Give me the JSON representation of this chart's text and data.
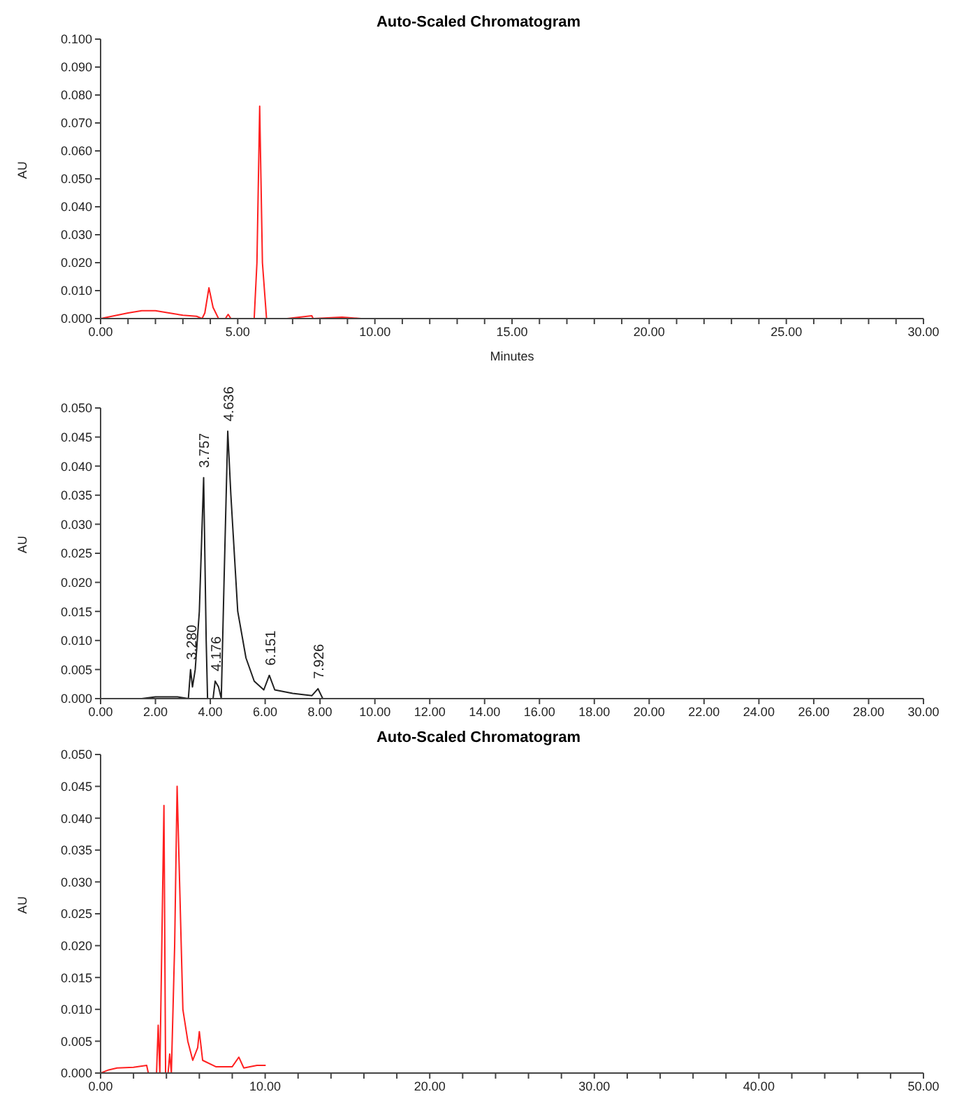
{
  "chart_data": [
    {
      "type": "line",
      "title": "Auto-Scaled Chromatogram",
      "xlabel": "Minutes",
      "ylabel": "AU",
      "marker": "none",
      "xlim": [
        0,
        30
      ],
      "xticks": [
        {
          "value": 0,
          "label": "0.00"
        },
        {
          "value": 1,
          "label": null
        },
        {
          "value": 2,
          "label": null
        },
        {
          "value": 3,
          "label": null
        },
        {
          "value": 4,
          "label": null
        },
        {
          "value": 5,
          "label": "5.00"
        },
        {
          "value": 6,
          "label": null
        },
        {
          "value": 7,
          "label": null
        },
        {
          "value": 8,
          "label": null
        },
        {
          "value": 9,
          "label": null
        },
        {
          "value": 10,
          "label": "10.00"
        },
        {
          "value": 11,
          "label": null
        },
        {
          "value": 12,
          "label": null
        },
        {
          "value": 13,
          "label": null
        },
        {
          "value": 14,
          "label": null
        },
        {
          "value": 15,
          "label": "15.00"
        },
        {
          "value": 16,
          "label": null
        },
        {
          "value": 17,
          "label": null
        },
        {
          "value": 18,
          "label": null
        },
        {
          "value": 19,
          "label": null
        },
        {
          "value": 20,
          "label": "20.00"
        },
        {
          "value": 21,
          "label": null
        },
        {
          "value": 22,
          "label": null
        },
        {
          "value": 23,
          "label": null
        },
        {
          "value": 24,
          "label": null
        },
        {
          "value": 25,
          "label": "25.00"
        },
        {
          "value": 26,
          "label": null
        },
        {
          "value": 27,
          "label": null
        },
        {
          "value": 28,
          "label": null
        },
        {
          "value": 29,
          "label": null
        },
        {
          "value": 30,
          "label": "30.00"
        }
      ],
      "ylim": [
        0,
        0.1
      ],
      "yticks": [
        {
          "value": 0,
          "label": "0.000"
        },
        {
          "value": 0.01,
          "label": "0.010"
        },
        {
          "value": 0.02,
          "label": "0.020"
        },
        {
          "value": 0.03,
          "label": "0.030"
        },
        {
          "value": 0.04,
          "label": "0.040"
        },
        {
          "value": 0.05,
          "label": "0.050"
        },
        {
          "value": 0.06,
          "label": "0.060"
        },
        {
          "value": 0.07,
          "label": "0.070"
        },
        {
          "value": 0.08,
          "label": "0.080"
        },
        {
          "value": 0.09,
          "label": "0.090"
        },
        {
          "value": 0.1,
          "label": "0.100"
        }
      ],
      "series": [
        {
          "color": "#ff2020",
          "x": [
            0,
            0.5,
            1,
            1.5,
            2,
            2.5,
            3,
            3.5,
            3.7,
            3.8,
            3.95,
            4.1,
            4.3,
            4.55,
            4.65,
            4.75,
            5.6,
            5.7,
            5.8,
            5.9,
            6.05,
            6.8,
            7.7,
            7.75,
            8.8,
            9.5,
            10
          ],
          "values": [
            0,
            0.001,
            0.002,
            0.0028,
            0.0028,
            0.002,
            0.0012,
            0.0008,
            0,
            0.002,
            0.011,
            0.004,
            0,
            0,
            0.0015,
            0,
            0,
            0.02,
            0.076,
            0.02,
            0,
            0,
            0.001,
            0,
            0.0005,
            0,
            0
          ]
        }
      ]
    },
    {
      "type": "line",
      "ylabel": "AU",
      "marker": "none",
      "xlim": [
        0,
        30
      ],
      "xticks": [
        {
          "value": 0,
          "label": "0.00"
        },
        {
          "value": 2,
          "label": "2.00"
        },
        {
          "value": 4,
          "label": "4.00"
        },
        {
          "value": 6,
          "label": "6.00"
        },
        {
          "value": 8,
          "label": "8.00"
        },
        {
          "value": 10,
          "label": "10.00"
        },
        {
          "value": 12,
          "label": "12.00"
        },
        {
          "value": 14,
          "label": "14.00"
        },
        {
          "value": 16,
          "label": "16.00"
        },
        {
          "value": 18,
          "label": "18.00"
        },
        {
          "value": 20,
          "label": "20.00"
        },
        {
          "value": 22,
          "label": "22.00"
        },
        {
          "value": 24,
          "label": "24.00"
        },
        {
          "value": 26,
          "label": "26.00"
        },
        {
          "value": 28,
          "label": "28.00"
        },
        {
          "value": 30,
          "label": "30.00"
        }
      ],
      "ylim": [
        0,
        0.05
      ],
      "yticks": [
        {
          "value": 0,
          "label": "0.000"
        },
        {
          "value": 0.005,
          "label": "0.005"
        },
        {
          "value": 0.01,
          "label": "0.010"
        },
        {
          "value": 0.015,
          "label": "0.015"
        },
        {
          "value": 0.02,
          "label": "0.020"
        },
        {
          "value": 0.025,
          "label": "0.025"
        },
        {
          "value": 0.03,
          "label": "0.030"
        },
        {
          "value": 0.035,
          "label": "0.035"
        },
        {
          "value": 0.04,
          "label": "0.040"
        },
        {
          "value": 0.045,
          "label": "0.045"
        },
        {
          "value": 0.05,
          "label": "0.050"
        }
      ],
      "series": [
        {
          "color": "#202020",
          "x": [
            1.5,
            2,
            2.8,
            3.2,
            3.28,
            3.35,
            3.45,
            3.6,
            3.757,
            3.85,
            3.9,
            4.1,
            4.176,
            4.3,
            4.4,
            4.5,
            4.636,
            4.75,
            5,
            5.3,
            5.6,
            5.95,
            6.151,
            6.35,
            7,
            7.7,
            7.926,
            8.1
          ],
          "values": [
            0,
            0.0003,
            0.0003,
            0,
            0.005,
            0.002,
            0.005,
            0.015,
            0.038,
            0.01,
            0,
            0,
            0.003,
            0.002,
            0,
            0.02,
            0.046,
            0.035,
            0.015,
            0.007,
            0.003,
            0.0015,
            0.004,
            0.0015,
            0.0009,
            0.0005,
            0.0017,
            0
          ]
        }
      ],
      "annotations": [
        {
          "text": "3.280",
          "x": 3.28,
          "y": 0.005
        },
        {
          "text": "3.757",
          "x": 3.757,
          "y": 0.038
        },
        {
          "text": "4.176",
          "x": 4.176,
          "y": 0.003
        },
        {
          "text": "4.636",
          "x": 4.636,
          "y": 0.046
        },
        {
          "text": "6.151",
          "x": 6.151,
          "y": 0.004
        },
        {
          "text": "7.926",
          "x": 7.926,
          "y": 0.0017
        }
      ]
    },
    {
      "type": "line",
      "title": "Auto-Scaled Chromatogram",
      "ylabel": "AU",
      "marker": "none",
      "xlim": [
        0,
        50
      ],
      "xticks": [
        {
          "value": 0,
          "label": "0.00"
        },
        {
          "value": 2,
          "label": null
        },
        {
          "value": 4,
          "label": null
        },
        {
          "value": 6,
          "label": null
        },
        {
          "value": 8,
          "label": null
        },
        {
          "value": 10,
          "label": "10.00"
        },
        {
          "value": 12,
          "label": null
        },
        {
          "value": 14,
          "label": null
        },
        {
          "value": 16,
          "label": null
        },
        {
          "value": 18,
          "label": null
        },
        {
          "value": 20,
          "label": "20.00"
        },
        {
          "value": 22,
          "label": null
        },
        {
          "value": 24,
          "label": null
        },
        {
          "value": 26,
          "label": null
        },
        {
          "value": 28,
          "label": null
        },
        {
          "value": 30,
          "label": "30.00"
        },
        {
          "value": 32,
          "label": null
        },
        {
          "value": 34,
          "label": null
        },
        {
          "value": 36,
          "label": null
        },
        {
          "value": 38,
          "label": null
        },
        {
          "value": 40,
          "label": "40.00"
        },
        {
          "value": 42,
          "label": null
        },
        {
          "value": 44,
          "label": null
        },
        {
          "value": 46,
          "label": null
        },
        {
          "value": 48,
          "label": null
        },
        {
          "value": 50,
          "label": "50.00"
        }
      ],
      "ylim": [
        0,
        0.05
      ],
      "yticks": [
        {
          "value": 0,
          "label": "0.000"
        },
        {
          "value": 0.005,
          "label": "0.005"
        },
        {
          "value": 0.01,
          "label": "0.010"
        },
        {
          "value": 0.015,
          "label": "0.015"
        },
        {
          "value": 0.02,
          "label": "0.020"
        },
        {
          "value": 0.025,
          "label": "0.025"
        },
        {
          "value": 0.03,
          "label": "0.030"
        },
        {
          "value": 0.035,
          "label": "0.035"
        },
        {
          "value": 0.04,
          "label": "0.040"
        },
        {
          "value": 0.045,
          "label": "0.045"
        },
        {
          "value": 0.05,
          "label": "0.050"
        }
      ],
      "series": [
        {
          "color": "#ff2020",
          "x": [
            0,
            0.5,
            1,
            2,
            2.8,
            2.9,
            3.4,
            3.5,
            3.6,
            3.85,
            3.95,
            4.1,
            4.2,
            4.3,
            4.5,
            4.65,
            4.8,
            5,
            5.3,
            5.6,
            5.9,
            6,
            6.2,
            7,
            8,
            8.4,
            8.7,
            9.5,
            10
          ],
          "values": [
            0,
            0.0005,
            0.0008,
            0.0009,
            0.0012,
            0,
            0,
            0.0075,
            0,
            0.042,
            0,
            0,
            0.003,
            0,
            0.02,
            0.045,
            0.03,
            0.01,
            0.005,
            0.002,
            0.004,
            0.0065,
            0.002,
            0.001,
            0.001,
            0.0025,
            0.0008,
            0.0012,
            0.0012
          ]
        }
      ]
    }
  ]
}
